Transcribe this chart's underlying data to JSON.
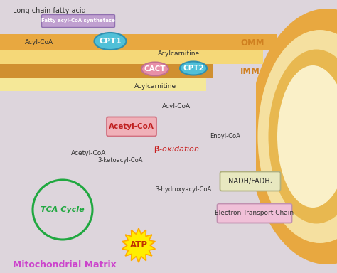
{
  "bg_color": "#ddd5dc",
  "omm_outer_color": "#e8a840",
  "omm_inner_color": "#f5e0a0",
  "imm_outer_color": "#e8b850",
  "imm_inner_color": "#faf0c8",
  "omm_label": "OMM",
  "imm_label": "IMM",
  "label_color": "#d08020",
  "cpt1_fc": "#50c0d8",
  "cpt1_ec": "#3090b0",
  "cpt2_fc": "#50c0d8",
  "cpt2_ec": "#3090b0",
  "cact_fc": "#e890a8",
  "cact_ec": "#c07090",
  "synth_fc": "#c0a0d0",
  "synth_ec": "#9070b0",
  "acetylcoa_fc": "#f0b0b8",
  "acetylcoa_ec": "#d07080",
  "nadh_fc": "#e8e8c0",
  "nadh_ec": "#b0b080",
  "etc_fc": "#f0c0d8",
  "etc_ec": "#c090b0",
  "tca_color": "#20a840",
  "beta_color": "#c82020",
  "arrow_dark": "#505050",
  "arrow_red": "#c82020",
  "arrow_green": "#20a840",
  "mito_matrix_color": "#cc44cc",
  "title_bottom": "Mitochondrial Matrix"
}
